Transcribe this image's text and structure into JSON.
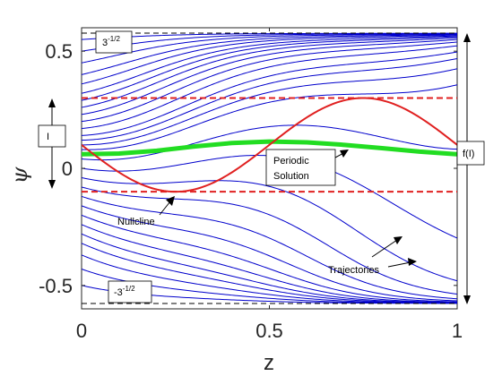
{
  "chart_data": {
    "type": "line",
    "xlabel": "z",
    "ylabel": "ψ",
    "xlim": [
      0,
      1
    ],
    "ylim": [
      -0.6,
      0.6
    ],
    "xticks": [
      "0",
      "0.5",
      "1"
    ],
    "yticks": [
      "-0.5",
      "0",
      "0.5"
    ],
    "xtick_values": [
      0,
      0.5,
      1
    ],
    "ytick_values": [
      -0.5,
      0,
      0.5
    ],
    "grid": false,
    "colors": {
      "trajectories": "#0000cc",
      "nullcline": "#e02020",
      "periodic": "#22dd22",
      "bounds": "#000000",
      "nullcline_extrema": "#e02020"
    },
    "bounds": {
      "upper_label": "3",
      "upper_exp": "-1/2",
      "lower_label": "-3",
      "lower_exp": "-1/2",
      "upper_value": 0.577,
      "lower_value": -0.577
    },
    "nullcline": {
      "center": 0.1,
      "amplitude": 0.2,
      "period": 1,
      "min": -0.1,
      "max": 0.3
    },
    "periodic_solution": {
      "x": [
        0,
        0.1,
        0.2,
        0.3,
        0.4,
        0.5,
        0.6,
        0.7,
        0.8,
        0.9,
        1.0
      ],
      "y": [
        0.06,
        0.063,
        0.075,
        0.093,
        0.108,
        0.114,
        0.111,
        0.1,
        0.086,
        0.071,
        0.06
      ]
    },
    "trajectory_starts": [
      0.55,
      0.5,
      0.45,
      0.4,
      0.36,
      0.32,
      0.29,
      0.26,
      0.23,
      0.2,
      0.17,
      0.14,
      0.12,
      0.1,
      0.08,
      0.04,
      0.0,
      -0.04,
      -0.08,
      -0.12,
      -0.16,
      -0.2,
      -0.24,
      -0.28,
      -0.32,
      -0.37,
      -0.43,
      -0.5
    ],
    "labels": {
      "interval_box": "I",
      "image_box": "f(I)",
      "periodic": [
        "Periodic",
        "Solution"
      ],
      "nullcline": "Nullcline",
      "trajectories": "Trajectories"
    }
  }
}
